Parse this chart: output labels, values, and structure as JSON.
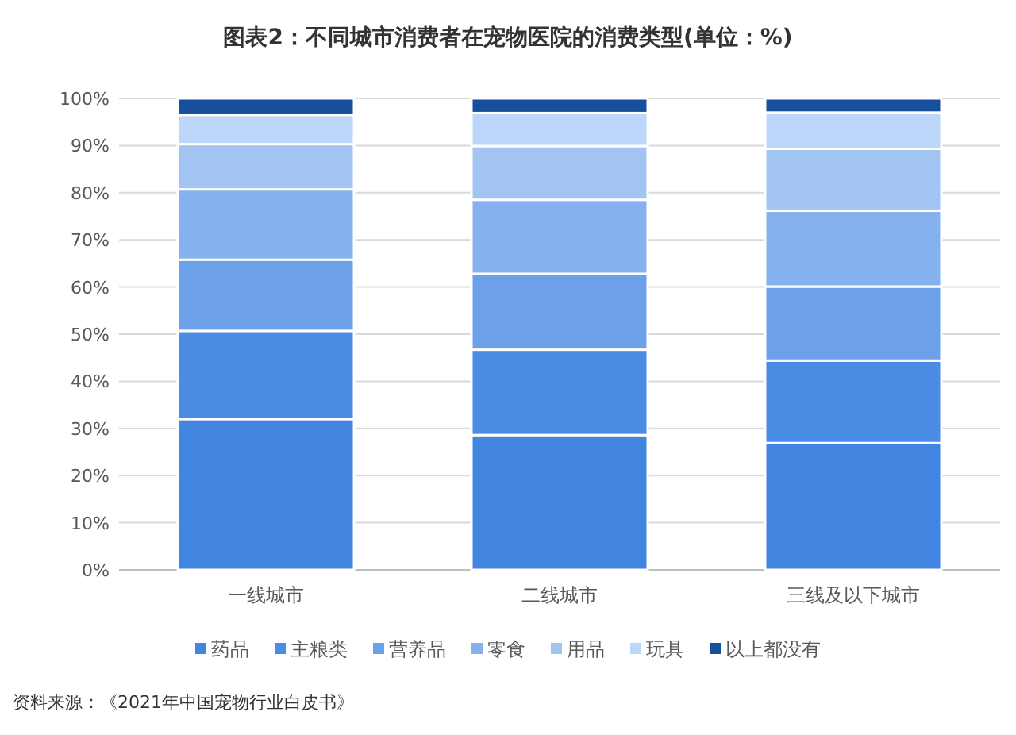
{
  "chart_data": {
    "type": "bar",
    "stacked": true,
    "title": "图表2：不同城市消费者在宠物医院的消费类型(单位：%)",
    "categories": [
      "一线城市",
      "二线城市",
      "三线及以下城市"
    ],
    "series": [
      {
        "name": "药品",
        "color": "#4285e0",
        "values": [
          32.0,
          28.6,
          26.9
        ]
      },
      {
        "name": "主粮类",
        "color": "#4a8be3",
        "values": [
          18.7,
          18.1,
          17.5
        ]
      },
      {
        "name": "营养品",
        "color": "#6ca1ea",
        "values": [
          15.1,
          16.1,
          15.7
        ]
      },
      {
        "name": "零食",
        "color": "#86b1ef",
        "values": [
          14.9,
          15.7,
          16.1
        ]
      },
      {
        "name": "用品",
        "color": "#a2c4f3",
        "values": [
          9.6,
          11.4,
          13.1
        ]
      },
      {
        "name": "玩具",
        "color": "#bcd7fa",
        "values": [
          6.2,
          7.0,
          7.7
        ]
      },
      {
        "name": "以上都没有",
        "color": "#174f9c",
        "values": [
          3.5,
          3.1,
          3.0
        ]
      }
    ],
    "ylim": [
      0,
      100
    ],
    "yticks": [
      {
        "value": 0,
        "label": "0%"
      },
      {
        "value": 10,
        "label": "10%"
      },
      {
        "value": 20,
        "label": "20%"
      },
      {
        "value": 30,
        "label": "30%"
      },
      {
        "value": 40,
        "label": "40%"
      },
      {
        "value": 50,
        "label": "50%"
      },
      {
        "value": 60,
        "label": "60%"
      },
      {
        "value": 70,
        "label": "70%"
      },
      {
        "value": 80,
        "label": "80%"
      },
      {
        "value": 90,
        "label": "90%"
      },
      {
        "value": 100,
        "label": "100%"
      }
    ],
    "grid": "y",
    "legend": "bottom",
    "annotations": [
      "资料来源：《2021年中国宠物行业白皮书》"
    ]
  }
}
